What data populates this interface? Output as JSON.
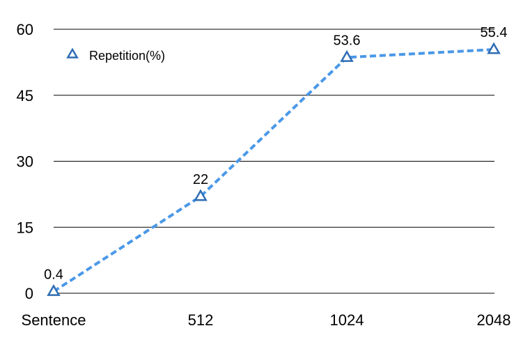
{
  "chart_data": {
    "type": "line",
    "title": "",
    "xlabel": "",
    "ylabel": "",
    "categories": [
      "Sentence",
      "512",
      "1024",
      "2048"
    ],
    "series": [
      {
        "name": "Repetition(%)",
        "values": [
          0.4,
          22,
          53.6,
          55.4
        ],
        "data_labels": [
          "0.4",
          "22",
          "53.6",
          "55.4"
        ],
        "color": "#4a98e8",
        "marker_color": "#2e6db4",
        "line_style": "dashed",
        "marker": "triangle-open"
      }
    ],
    "ylim": [
      0,
      60
    ],
    "yticks": [
      0,
      15,
      30,
      45,
      60
    ],
    "ytick_labels": [
      "0",
      "15",
      "30",
      "45",
      "60"
    ],
    "grid": "horizontal",
    "legend": {
      "position": "top-left",
      "entries": [
        "Repetition(%)"
      ]
    }
  }
}
